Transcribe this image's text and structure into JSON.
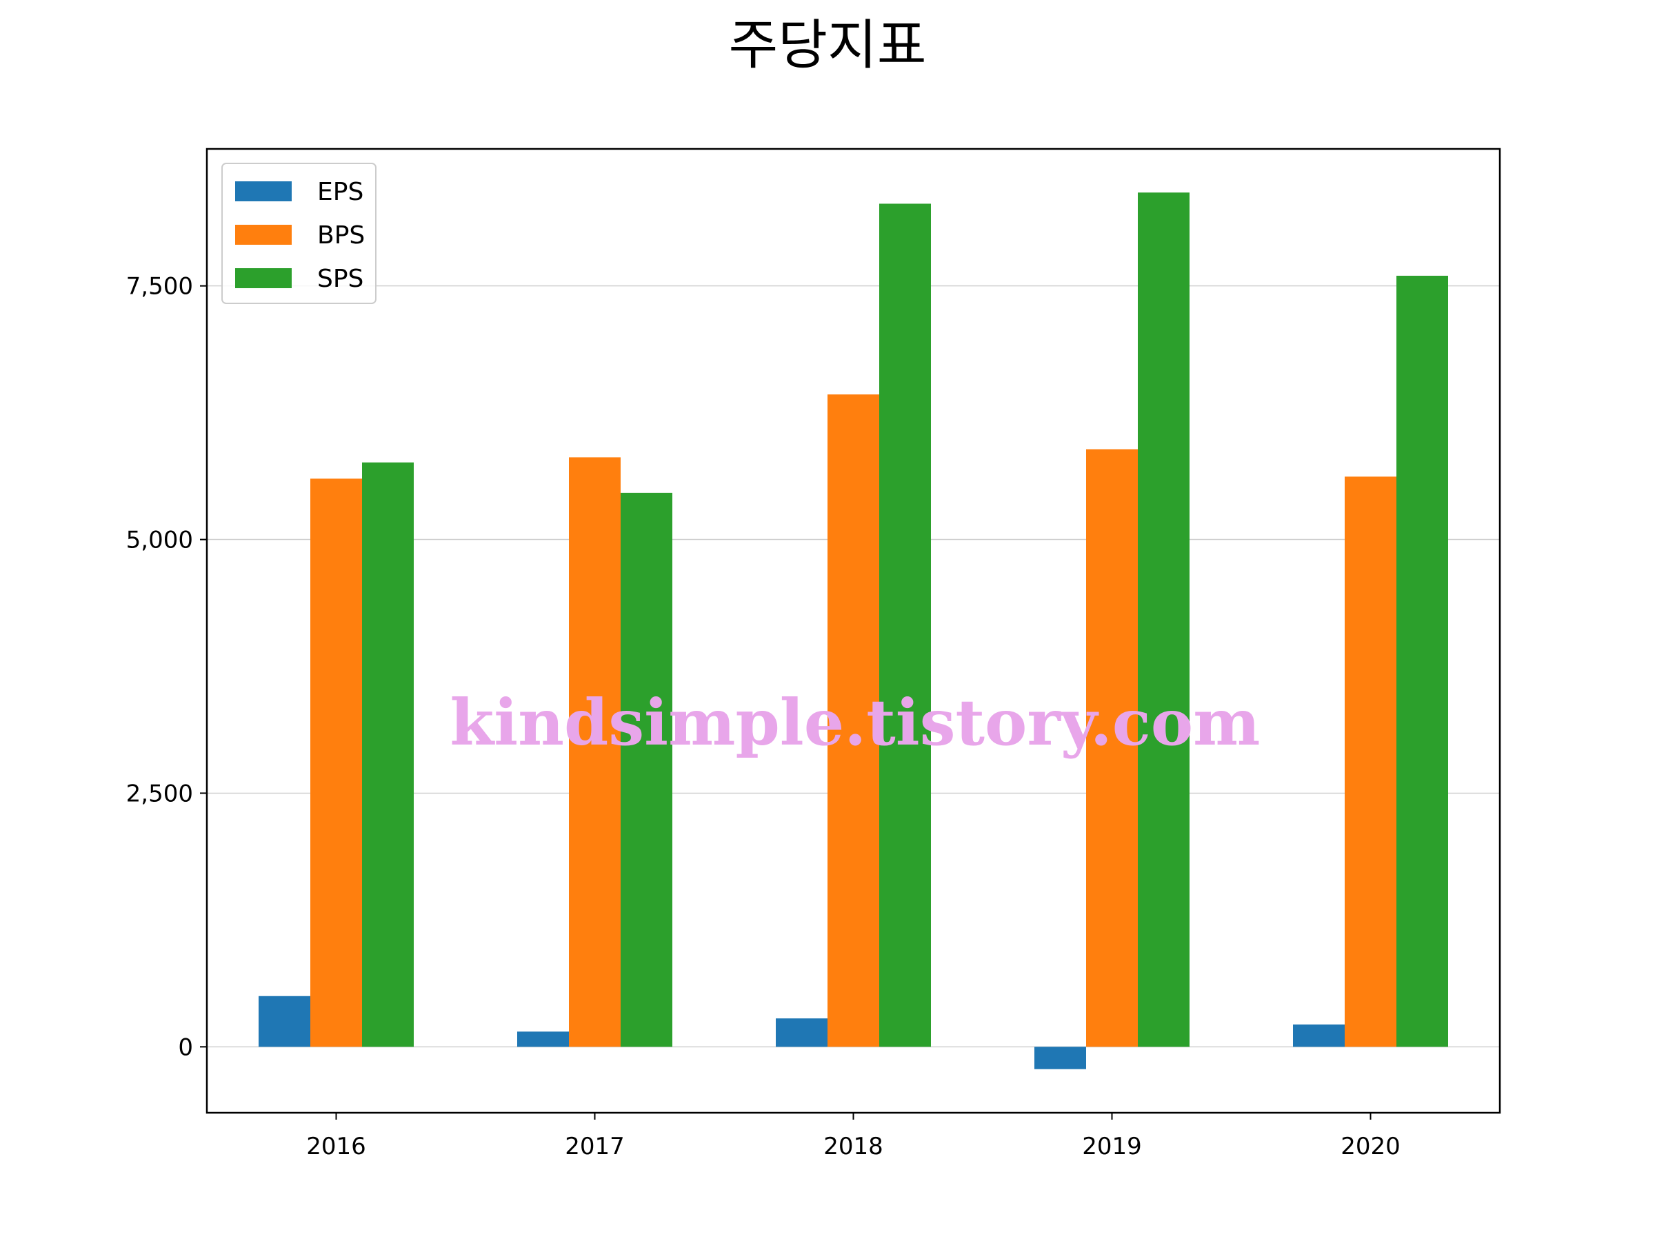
{
  "chart_data": {
    "type": "bar",
    "title": "주당지표",
    "xlabel": "",
    "ylabel": "",
    "categories": [
      "2016",
      "2017",
      "2018",
      "2019",
      "2020"
    ],
    "series": [
      {
        "name": "EPS",
        "color": "#1f77b4",
        "values": [
          500,
          150,
          280,
          -220,
          220
        ]
      },
      {
        "name": "BPS",
        "color": "#ff7f0e",
        "values": [
          5600,
          5810,
          6430,
          5890,
          5620
        ]
      },
      {
        "name": "SPS",
        "color": "#2ca02c",
        "values": [
          5760,
          5460,
          8310,
          8420,
          7600
        ]
      }
    ],
    "ylim": [
      -650,
      8850
    ],
    "yticks": [
      0,
      2500,
      5000,
      7500
    ],
    "ytick_labels": [
      "0",
      "2,500",
      "5,000",
      "7,500"
    ],
    "grid": "horizontal",
    "legend": "top-left"
  },
  "watermark": "kindsimple.tistory.com"
}
